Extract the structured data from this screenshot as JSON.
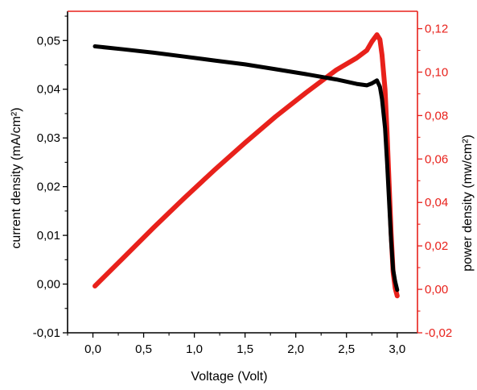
{
  "chart_data": {
    "type": "line",
    "xlabel": "Voltage (Volt)",
    "ylabel_left": "current density (mA/cm²)",
    "ylabel_right": "power density (mw/cm²)",
    "xlim": [
      -0.25,
      3.2
    ],
    "ylim_left": [
      -0.01,
      0.056
    ],
    "ylim_right": [
      -0.02,
      0.128
    ],
    "x_ticks": [
      0.0,
      0.5,
      1.0,
      1.5,
      2.0,
      2.5,
      3.0
    ],
    "x_tick_labels": [
      "0,0",
      "0,5",
      "1,0",
      "1,5",
      "2,0",
      "2,5",
      "3,0"
    ],
    "y_left_ticks": [
      -0.01,
      0.0,
      0.01,
      0.02,
      0.03,
      0.04,
      0.05
    ],
    "y_left_tick_labels": [
      "-0,01",
      "0,00",
      "0,01",
      "0,02",
      "0,03",
      "0,04",
      "0,05"
    ],
    "y_right_ticks": [
      -0.02,
      0.0,
      0.02,
      0.04,
      0.06,
      0.08,
      0.1,
      0.12
    ],
    "y_right_tick_labels": [
      "-0,02",
      "0,00",
      "0,02",
      "0,04",
      "0,06",
      "0,08",
      "0,10",
      "0,12"
    ],
    "grid": false,
    "colors": {
      "current": "#000000",
      "power": "#e8211b",
      "right_axis": "#e8211b",
      "left_axis": "#000000"
    },
    "series": [
      {
        "axis": "left",
        "x": [
          0.02,
          0.3,
          0.6,
          0.9,
          1.2,
          1.5,
          1.8,
          2.1,
          2.4,
          2.6,
          2.7,
          2.75,
          2.8,
          2.83,
          2.85,
          2.88,
          2.9,
          2.92,
          2.94,
          2.96,
          2.98,
          3.0
        ],
        "y": [
          0.0488,
          0.0482,
          0.0475,
          0.0467,
          0.0459,
          0.0451,
          0.0441,
          0.0431,
          0.042,
          0.0411,
          0.0408,
          0.0412,
          0.0418,
          0.0405,
          0.038,
          0.032,
          0.025,
          0.017,
          0.009,
          0.003,
          0.0005,
          -0.0012
        ]
      },
      {
        "axis": "right",
        "x": [
          0.02,
          0.3,
          0.6,
          0.9,
          1.2,
          1.5,
          1.8,
          2.1,
          2.4,
          2.6,
          2.7,
          2.75,
          2.8,
          2.83,
          2.85,
          2.88,
          2.9,
          2.92,
          2.94,
          2.96,
          2.98,
          3.0
        ],
        "y": [
          0.0015,
          0.0145,
          0.0285,
          0.042,
          0.055,
          0.0675,
          0.0795,
          0.0905,
          0.101,
          0.1065,
          0.11,
          0.114,
          0.1172,
          0.115,
          0.108,
          0.092,
          0.072,
          0.049,
          0.026,
          0.008,
          0.0005,
          -0.003
        ]
      }
    ]
  }
}
